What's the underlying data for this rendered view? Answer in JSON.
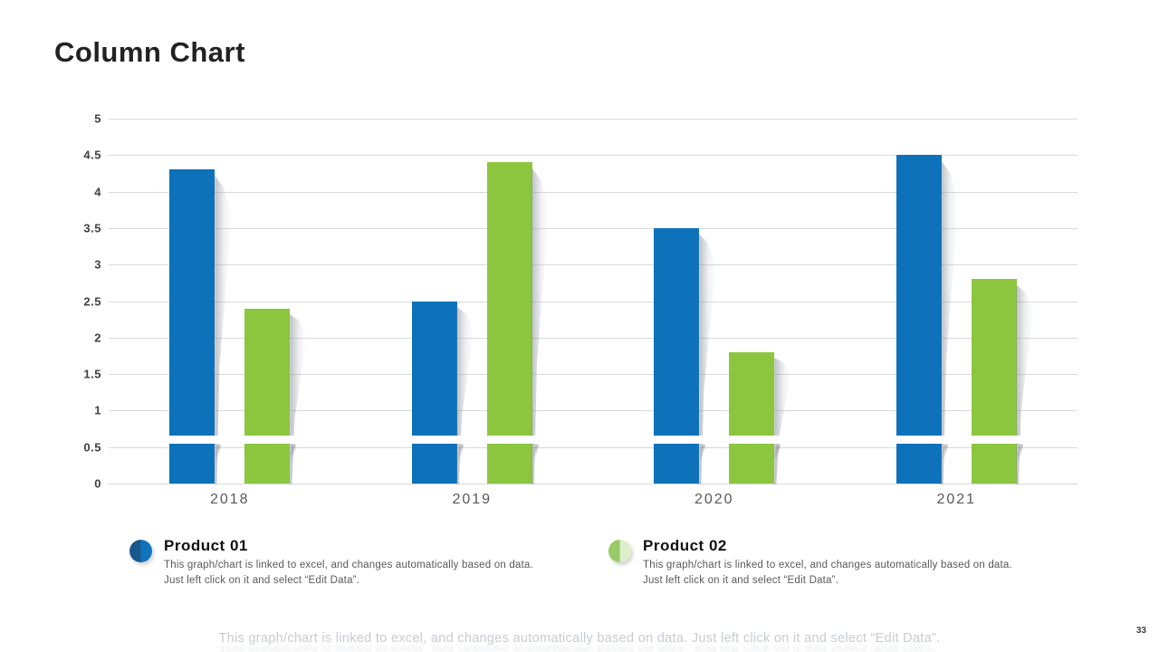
{
  "slide": {
    "title": "Column Chart",
    "page_number": "33",
    "footer_note": "This graph/chart is linked to excel, and changes automatically based on data. Just left click on it and select “Edit Data”."
  },
  "chart_data": {
    "type": "bar",
    "title": "Column Chart",
    "categories": [
      "2018",
      "2019",
      "2020",
      "2021"
    ],
    "series": [
      {
        "name": "Product 01",
        "color": "#0e72ba",
        "values": [
          4.3,
          2.5,
          3.5,
          4.5
        ]
      },
      {
        "name": "Product 02",
        "color": "#8cc63e",
        "values": [
          2.4,
          4.4,
          1.8,
          2.8
        ]
      }
    ],
    "xlabel": "",
    "ylabel": "",
    "ylim": [
      0,
      5
    ],
    "ytick_step": 0.5,
    "yticks": [
      "5",
      "4.5",
      "4",
      "3.5",
      "3",
      "2.5",
      "2",
      "1.5",
      "1",
      "0.5",
      "0"
    ],
    "grid": true,
    "gridline_color": "#d9d9d9",
    "legend_position": "bottom"
  },
  "legend": {
    "items": [
      {
        "label": "Product 01",
        "color_left": "#19588a",
        "color_right": "#0f72bc",
        "description": "This graph/chart is linked to excel, and changes automatically based on data.  Just left click on it and select “Edit Data”."
      },
      {
        "label": "Product 02",
        "color_left": "#98ca66",
        "color_right": "#ddeecb",
        "description": "This graph/chart is linked to excel, and changes automatically based on data.  Just left click on it and select “Edit Data”."
      }
    ]
  }
}
